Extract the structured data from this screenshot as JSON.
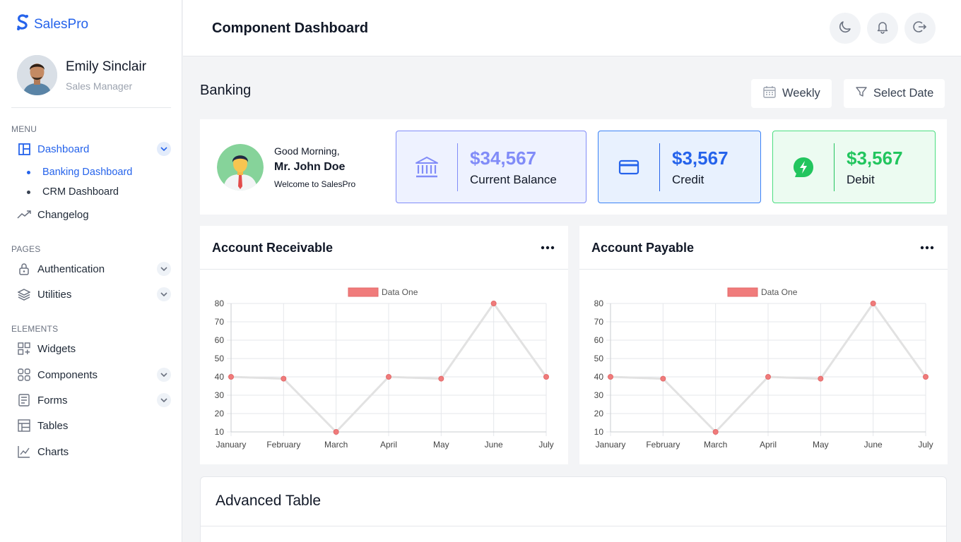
{
  "brand": {
    "name": "SalesPro",
    "color": "#2563eb"
  },
  "profile": {
    "name": "Emily Sinclair",
    "role": "Sales Manager"
  },
  "sidebar": {
    "menu_label": "MENU",
    "dashboard": {
      "label": "Dashboard",
      "icon": "layout-icon",
      "expanded": true
    },
    "dashboard_children": [
      {
        "label": "Banking Dashboard",
        "active": true
      },
      {
        "label": "CRM Dashboard",
        "active": false
      }
    ],
    "changelog": {
      "label": "Changelog",
      "icon": "trend-icon"
    },
    "pages_label": "PAGES",
    "pages": [
      {
        "label": "Authentication",
        "icon": "lock-icon"
      },
      {
        "label": "Utilities",
        "icon": "layers-icon"
      }
    ],
    "elements_label": "ELEMENTS",
    "elements": [
      {
        "label": "Widgets",
        "icon": "widgets-icon"
      },
      {
        "label": "Components",
        "icon": "components-icon"
      },
      {
        "label": "Forms",
        "icon": "forms-icon"
      },
      {
        "label": "Tables",
        "icon": "tables-icon"
      },
      {
        "label": "Charts",
        "icon": "charts-icon"
      }
    ]
  },
  "header": {
    "title": "Component Dashboard",
    "icons": [
      "moon-icon",
      "bell-icon",
      "logout-icon"
    ]
  },
  "main": {
    "heading": "Banking",
    "weekly_label": "Weekly",
    "select_date_label": "Select Date"
  },
  "welcome": {
    "greeting": "Good Morning,",
    "name": "Mr. John Doe",
    "message": "Welcome to SalesPro"
  },
  "stats": [
    {
      "value": "$34,567",
      "label": "Current Balance",
      "icon": "bank-icon",
      "color": "#818cf8",
      "bg": "#eef2ff",
      "border": "#818cf8"
    },
    {
      "value": "$3,567",
      "label": "Credit",
      "icon": "credit-card-icon",
      "color": "#2563eb",
      "bg": "#e8f1fe",
      "border": "#3b82f6"
    },
    {
      "value": "$3,567",
      "label": "Debit",
      "icon": "lightning-icon",
      "color": "#22c55e",
      "bg": "#ecfbf1",
      "border": "#4ade80"
    }
  ],
  "charts": {
    "receivable_title": "Account Receivable",
    "payable_title": "Account Payable"
  },
  "chart_data": [
    {
      "type": "line",
      "title": "Account Receivable",
      "categories": [
        "January",
        "February",
        "March",
        "April",
        "May",
        "June",
        "July"
      ],
      "series": [
        {
          "name": "Data One",
          "values": [
            40,
            39,
            10,
            40,
            39,
            80,
            40
          ],
          "color": "#f07b7b"
        }
      ],
      "ylim": [
        10,
        80
      ],
      "yticks": [
        10,
        20,
        30,
        40,
        50,
        60,
        70,
        80
      ],
      "legend": "top",
      "grid": true
    },
    {
      "type": "line",
      "title": "Account Payable",
      "categories": [
        "January",
        "February",
        "March",
        "April",
        "May",
        "June",
        "July"
      ],
      "series": [
        {
          "name": "Data One",
          "values": [
            40,
            39,
            10,
            40,
            39,
            80,
            40
          ],
          "color": "#f07b7b"
        }
      ],
      "ylim": [
        10,
        80
      ],
      "yticks": [
        10,
        20,
        30,
        40,
        50,
        60,
        70,
        80
      ],
      "legend": "top",
      "grid": true
    }
  ],
  "table": {
    "title": "Advanced Table"
  }
}
